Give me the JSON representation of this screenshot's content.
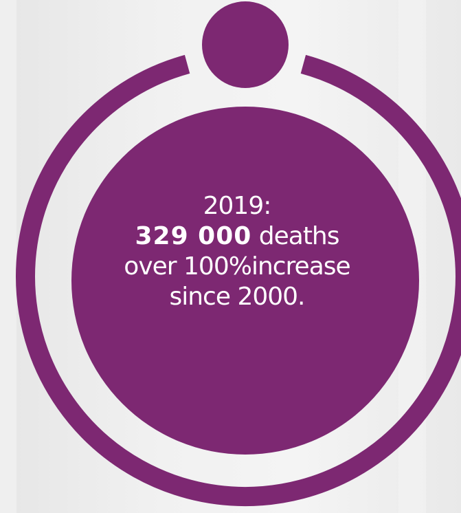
{
  "colors": {
    "accent": "#7d2872",
    "background": "#ededed",
    "text": "#ffffff"
  },
  "callout": {
    "year_label": "2019:",
    "deaths_value": "329 000",
    "deaths_suffix": " deaths",
    "increase_line": "over 100%increase",
    "since_line": "since 2000."
  }
}
